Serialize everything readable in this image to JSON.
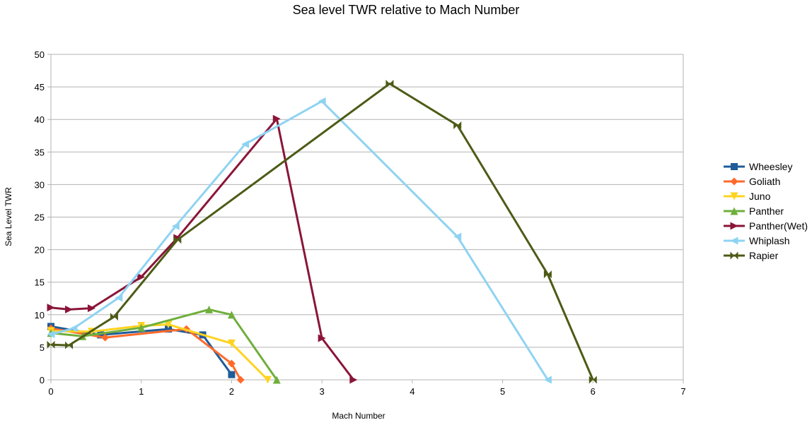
{
  "chart_data": {
    "type": "line",
    "title": "Sea level TWR relative to Mach Number",
    "xlabel": "Mach  Number",
    "ylabel": "Sea Level TWR",
    "xlim": [
      0,
      7
    ],
    "ylim": [
      0,
      50
    ],
    "x_ticks": [
      0,
      1,
      2,
      3,
      4,
      5,
      6,
      7
    ],
    "y_ticks": [
      0,
      5,
      10,
      15,
      20,
      25,
      30,
      35,
      40,
      45,
      50
    ],
    "grid": "horizontal",
    "legend_position": "right",
    "series": [
      {
        "name": "Wheesley",
        "color": "#1f5c99",
        "marker": "square",
        "points": [
          [
            0,
            8.2
          ],
          [
            0.55,
            6.9
          ],
          [
            1.3,
            7.8
          ],
          [
            1.68,
            6.9
          ],
          [
            2.0,
            0.8
          ]
        ]
      },
      {
        "name": "Goliath",
        "color": "#ff6a2b",
        "marker": "diamond",
        "points": [
          [
            0,
            7.9
          ],
          [
            0.6,
            6.5
          ],
          [
            1.5,
            7.8
          ],
          [
            2.0,
            2.5
          ],
          [
            2.1,
            0.0
          ]
        ]
      },
      {
        "name": "Juno",
        "color": "#ffd320",
        "marker": "triangle-down",
        "points": [
          [
            0,
            7.5
          ],
          [
            0.45,
            7.4
          ],
          [
            1.0,
            8.3
          ],
          [
            1.3,
            8.5
          ],
          [
            2.0,
            5.6
          ],
          [
            2.4,
            0.0
          ]
        ]
      },
      {
        "name": "Panther",
        "color": "#6faf3c",
        "marker": "triangle-up",
        "points": [
          [
            0,
            7.2
          ],
          [
            0.35,
            6.7
          ],
          [
            1.0,
            8.0
          ],
          [
            1.75,
            10.8
          ],
          [
            2.0,
            10.0
          ],
          [
            2.5,
            0.0
          ]
        ]
      },
      {
        "name": "Panther(Wet)",
        "color": "#8a1538",
        "marker": "triangle-right",
        "points": [
          [
            0,
            11.1
          ],
          [
            0.2,
            10.8
          ],
          [
            0.45,
            11.0
          ],
          [
            1.0,
            15.8
          ],
          [
            1.4,
            21.8
          ],
          [
            2.5,
            40.1
          ],
          [
            3.0,
            6.4
          ],
          [
            3.35,
            0.0
          ]
        ]
      },
      {
        "name": "Whiplash",
        "color": "#8fd3f2",
        "marker": "triangle-left",
        "points": [
          [
            0,
            7.0
          ],
          [
            0.25,
            7.9
          ],
          [
            0.75,
            12.6
          ],
          [
            1.38,
            23.6
          ],
          [
            2.15,
            36.2
          ],
          [
            3.0,
            42.8
          ],
          [
            4.5,
            22.0
          ],
          [
            5.5,
            0.0
          ]
        ]
      },
      {
        "name": "Rapier",
        "color": "#4c5b16",
        "marker": "bowtie",
        "points": [
          [
            0,
            5.4
          ],
          [
            0.2,
            5.3
          ],
          [
            0.7,
            9.7
          ],
          [
            1.4,
            21.5
          ],
          [
            3.75,
            45.5
          ],
          [
            4.5,
            39.1
          ],
          [
            5.5,
            16.2
          ],
          [
            6.0,
            0.0
          ]
        ]
      }
    ]
  }
}
